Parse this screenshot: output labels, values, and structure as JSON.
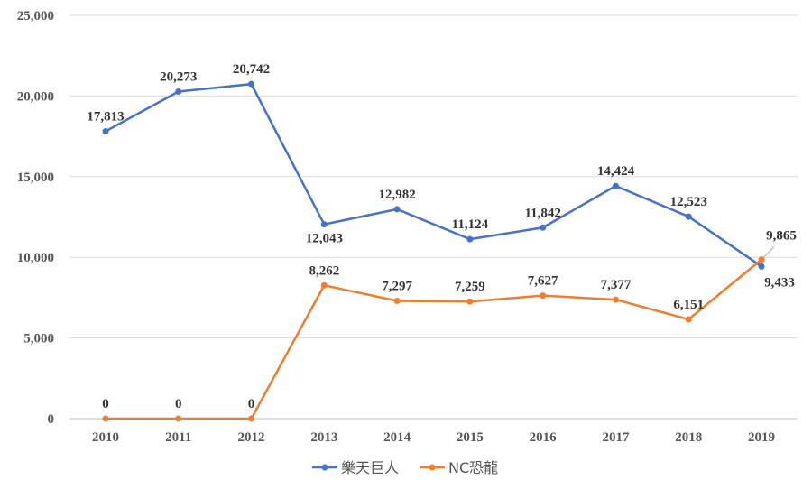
{
  "chart_data": {
    "type": "line",
    "title": "",
    "xlabel": "",
    "ylabel": "",
    "x": [
      "2010",
      "2011",
      "2012",
      "2013",
      "2014",
      "2015",
      "2016",
      "2017",
      "2018",
      "2019"
    ],
    "ylim": [
      0,
      25000
    ],
    "yticks": [
      "0",
      "5,000",
      "10,000",
      "15,000",
      "20,000",
      "25,000"
    ],
    "ytick_values": [
      0,
      5000,
      10000,
      15000,
      20000,
      25000
    ],
    "grid": true,
    "legend_position": "bottom",
    "series": [
      {
        "name": "樂天巨人",
        "color": "#4472C4",
        "values": [
          17813,
          20273,
          20742,
          12043,
          12982,
          11124,
          11842,
          14424,
          12523,
          9433
        ],
        "labels": [
          "17,813",
          "20,273",
          "20,742",
          "12,043",
          "12,982",
          "11,124",
          "11,842",
          "14,424",
          "12,523",
          "9,433"
        ]
      },
      {
        "name": "NC恐龍",
        "color": "#ED7D31",
        "values": [
          0,
          0,
          0,
          8262,
          7297,
          7259,
          7627,
          7377,
          6151,
          9865
        ],
        "labels": [
          "0",
          "0",
          "0",
          "8,262",
          "7,297",
          "7,259",
          "7,627",
          "7,377",
          "6,151",
          "9,865"
        ]
      }
    ]
  }
}
